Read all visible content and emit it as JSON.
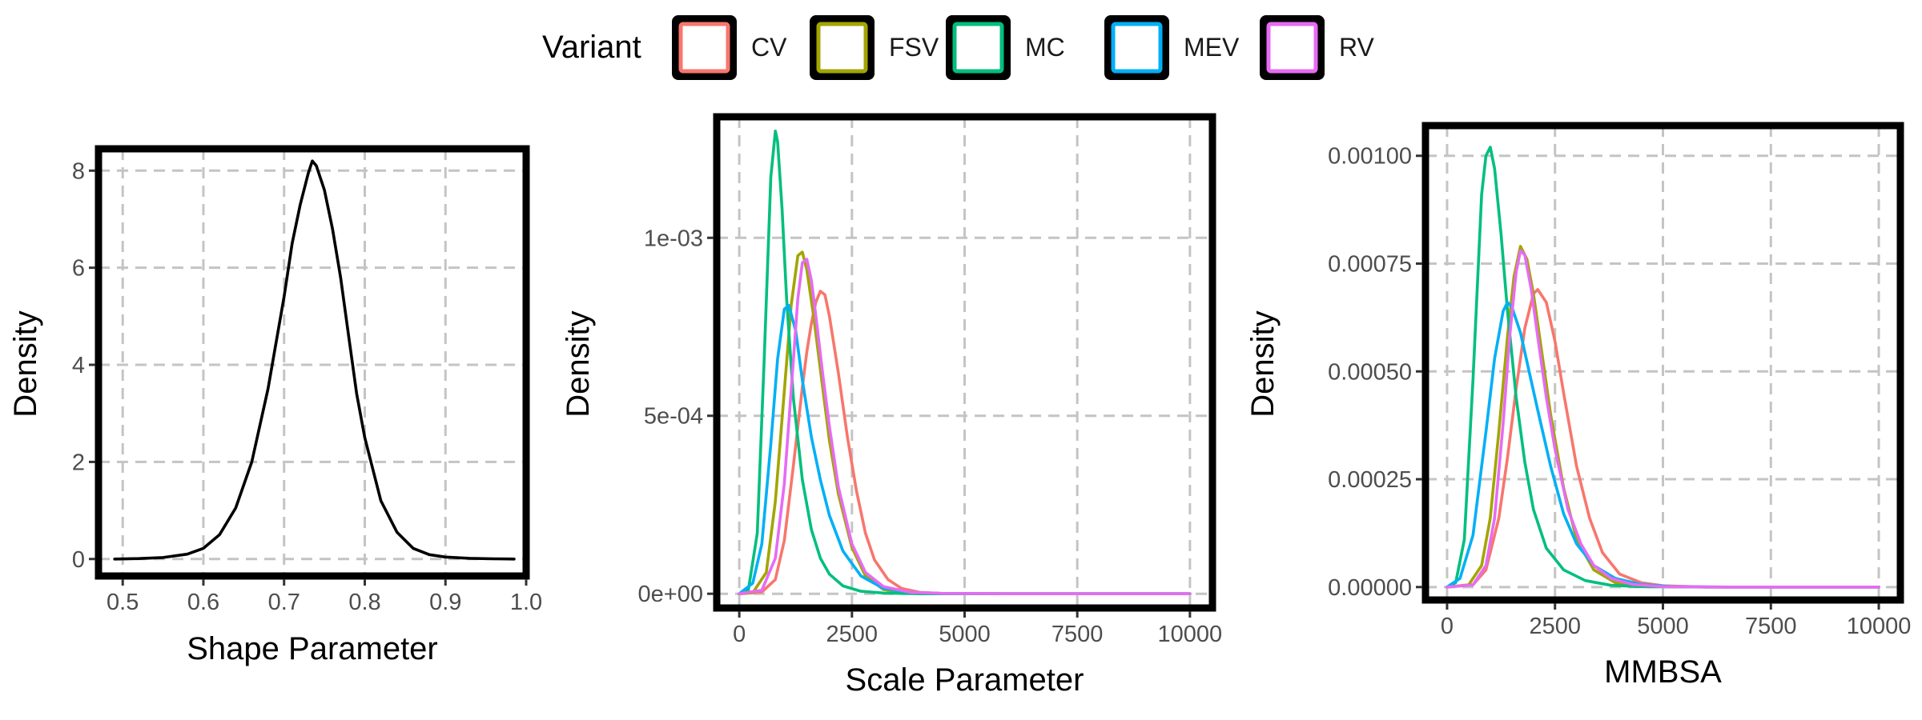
{
  "legend": {
    "title": "Variant",
    "items": [
      {
        "label": "CV",
        "color": "#F8766D"
      },
      {
        "label": "FSV",
        "color": "#A3A500"
      },
      {
        "label": "MC",
        "color": "#00BF7D"
      },
      {
        "label": "MEV",
        "color": "#00B0F6"
      },
      {
        "label": "RV",
        "color": "#E76BF3"
      }
    ]
  },
  "chart_data": [
    {
      "type": "line",
      "xlabel": "Shape Parameter",
      "ylabel": "Density",
      "xlim": [
        0.47,
        1.0
      ],
      "ylim": [
        -0.35,
        8.45
      ],
      "xticks": [
        0.5,
        0.6,
        0.7,
        0.8,
        0.9,
        1.0
      ],
      "xtick_labels": [
        "0.5",
        "0.6",
        "0.7",
        "0.8",
        "0.9",
        "1.0"
      ],
      "yticks": [
        0,
        2,
        4,
        6,
        8
      ],
      "ytick_labels": [
        "0",
        "2",
        "4",
        "6",
        "8"
      ],
      "grid": true,
      "series": [
        {
          "color": "#000000",
          "x": [
            0.49,
            0.52,
            0.55,
            0.58,
            0.6,
            0.62,
            0.64,
            0.66,
            0.68,
            0.7,
            0.71,
            0.72,
            0.73,
            0.735,
            0.74,
            0.75,
            0.76,
            0.77,
            0.78,
            0.79,
            0.8,
            0.82,
            0.84,
            0.86,
            0.88,
            0.9,
            0.93,
            0.96,
            0.985
          ],
          "y": [
            0.0,
            0.01,
            0.03,
            0.1,
            0.22,
            0.5,
            1.05,
            2.0,
            3.5,
            5.4,
            6.5,
            7.3,
            7.95,
            8.2,
            8.1,
            7.6,
            6.8,
            5.8,
            4.6,
            3.4,
            2.5,
            1.2,
            0.55,
            0.22,
            0.09,
            0.04,
            0.015,
            0.005,
            0.0
          ]
        }
      ]
    },
    {
      "type": "line",
      "xlabel": "Scale Parameter",
      "ylabel": "Density",
      "xlim": [
        -500,
        10500
      ],
      "ylim": [
        -4e-05,
        0.00134
      ],
      "xticks": [
        0,
        2500,
        5000,
        7500,
        10000
      ],
      "xtick_labels": [
        "0",
        "2500",
        "5000",
        "7500",
        "10000"
      ],
      "yticks": [
        0,
        0.0005,
        0.001
      ],
      "ytick_labels": [
        "0e+00",
        "5e-04",
        "1e-03"
      ],
      "grid": true,
      "series": [
        {
          "name": "CV",
          "color": "#F8766D",
          "x": [
            0,
            500,
            800,
            1000,
            1200,
            1400,
            1500,
            1600,
            1700,
            1800,
            1900,
            2000,
            2200,
            2400,
            2600,
            2800,
            3000,
            3300,
            3600,
            4000,
            4500,
            5000,
            6000,
            8000,
            10000
          ],
          "y": [
            0,
            5e-06,
            4e-05,
            0.00015,
            0.00036,
            0.00058,
            0.00068,
            0.00076,
            0.00082,
            0.00085,
            0.00084,
            0.00078,
            0.00062,
            0.00044,
            0.00029,
            0.00017,
            9.5e-05,
            4e-05,
            1.5e-05,
            4e-06,
            1e-06,
            0,
            0,
            0,
            0
          ]
        },
        {
          "name": "FSV",
          "color": "#A3A500",
          "x": [
            0,
            300,
            600,
            800,
            1000,
            1150,
            1300,
            1400,
            1500,
            1650,
            1800,
            2000,
            2200,
            2500,
            2800,
            3200,
            3700,
            4500,
            6000,
            8000,
            10000
          ],
          "y": [
            0,
            3e-06,
            6e-05,
            0.00026,
            0.00057,
            0.00081,
            0.00095,
            0.00096,
            0.00091,
            0.00078,
            0.00063,
            0.00043,
            0.00028,
            0.00013,
            5e-05,
            1.2e-05,
            2e-06,
            0,
            0,
            0,
            0
          ]
        },
        {
          "name": "MC",
          "color": "#00BF7D",
          "x": [
            0,
            200,
            400,
            550,
            700,
            800,
            850,
            950,
            1050,
            1200,
            1400,
            1600,
            1800,
            2000,
            2300,
            2700,
            3200,
            4000,
            5000,
            7000,
            10000
          ],
          "y": [
            0,
            1e-05,
            0.00017,
            0.00065,
            0.00117,
            0.0013,
            0.00127,
            0.00108,
            0.00083,
            0.00055,
            0.00032,
            0.00018,
            0.0001,
            5.5e-05,
            2.2e-05,
            7e-06,
            2e-06,
            0,
            0,
            0,
            0
          ]
        },
        {
          "name": "MEV",
          "color": "#00B0F6",
          "x": [
            0,
            300,
            500,
            700,
            850,
            1000,
            1100,
            1250,
            1400,
            1600,
            1800,
            2000,
            2300,
            2700,
            3200,
            3800,
            4500,
            6000,
            8000,
            10000
          ],
          "y": [
            0,
            3e-05,
            0.00014,
            0.00042,
            0.00066,
            0.0008,
            0.00081,
            0.00074,
            0.0006,
            0.00044,
            0.00032,
            0.00022,
            0.00012,
            5e-05,
            1.5e-05,
            4e-06,
            1e-06,
            0,
            0,
            0
          ]
        },
        {
          "name": "RV",
          "color": "#E76BF3",
          "x": [
            0,
            500,
            800,
            1000,
            1150,
            1300,
            1400,
            1500,
            1600,
            1700,
            1850,
            2000,
            2200,
            2500,
            2800,
            3200,
            3800,
            4500,
            6000,
            8000,
            10000
          ],
          "y": [
            0,
            1e-05,
            0.0001,
            0.00031,
            0.00057,
            0.00083,
            0.00093,
            0.00094,
            0.00088,
            0.00078,
            0.00062,
            0.00047,
            0.0003,
            0.00014,
            6e-05,
            2e-05,
            4e-06,
            1e-06,
            0,
            0,
            0
          ]
        }
      ]
    },
    {
      "type": "line",
      "xlabel": "MMBSA",
      "ylabel": "Density",
      "xlim": [
        -500,
        10500
      ],
      "ylim": [
        -3e-05,
        0.00107
      ],
      "xticks": [
        0,
        2500,
        5000,
        7500,
        10000
      ],
      "xtick_labels": [
        "0",
        "2500",
        "5000",
        "7500",
        "10000"
      ],
      "yticks": [
        0,
        0.00025,
        0.0005,
        0.00075,
        0.001
      ],
      "ytick_labels": [
        "0.00000",
        "0.00025",
        "0.00050",
        "0.00075",
        "0.00100"
      ],
      "grid": true,
      "series": [
        {
          "name": "CV",
          "color": "#F8766D",
          "x": [
            0,
            600,
            900,
            1200,
            1400,
            1600,
            1800,
            2000,
            2100,
            2300,
            2500,
            2700,
            3000,
            3300,
            3600,
            4000,
            4500,
            5000,
            6000,
            8000,
            10000
          ],
          "y": [
            0,
            5e-06,
            4e-05,
            0.00016,
            0.0003,
            0.00046,
            0.0006,
            0.00068,
            0.00069,
            0.00066,
            0.00057,
            0.00045,
            0.00028,
            0.00016,
            8e-05,
            3e-05,
            1e-05,
            3e-06,
            0,
            0,
            0
          ]
        },
        {
          "name": "FSV",
          "color": "#A3A500",
          "x": [
            0,
            500,
            800,
            1000,
            1200,
            1400,
            1550,
            1700,
            1850,
            2000,
            2200,
            2400,
            2700,
            3000,
            3400,
            3900,
            4500,
            6000,
            8000,
            10000
          ],
          "y": [
            0,
            5e-06,
            5e-05,
            0.00016,
            0.00036,
            0.00058,
            0.00072,
            0.00079,
            0.00076,
            0.00068,
            0.00054,
            0.0004,
            0.00023,
            0.00011,
            4e-05,
            1e-05,
            2e-06,
            0,
            0,
            0
          ]
        },
        {
          "name": "MC",
          "color": "#00BF7D",
          "x": [
            0,
            200,
            400,
            600,
            800,
            900,
            1000,
            1100,
            1250,
            1400,
            1600,
            1800,
            2000,
            2300,
            2700,
            3200,
            3800,
            4500,
            6000,
            8000,
            10000
          ],
          "y": [
            0,
            1e-05,
            0.00011,
            0.00048,
            0.00091,
            0.001,
            0.00102,
            0.00097,
            0.00082,
            0.00064,
            0.00044,
            0.00029,
            0.00018,
            9e-05,
            4e-05,
            1.5e-05,
            4e-06,
            1e-06,
            0,
            0,
            0
          ]
        },
        {
          "name": "MEV",
          "color": "#00B0F6",
          "x": [
            0,
            300,
            600,
            900,
            1100,
            1300,
            1400,
            1500,
            1700,
            1900,
            2100,
            2400,
            2700,
            3000,
            3400,
            3900,
            4500,
            5200,
            6500,
            8000,
            10000
          ],
          "y": [
            0,
            2e-05,
            0.00012,
            0.00036,
            0.00053,
            0.00064,
            0.00066,
            0.00065,
            0.00059,
            0.0005,
            0.00041,
            0.00028,
            0.00017,
            0.0001,
            5e-05,
            2e-05,
            6e-06,
            1e-06,
            0,
            0,
            0
          ]
        },
        {
          "name": "RV",
          "color": "#E76BF3",
          "x": [
            0,
            600,
            900,
            1100,
            1300,
            1450,
            1600,
            1700,
            1800,
            1950,
            2100,
            2300,
            2500,
            2800,
            3100,
            3400,
            3800,
            4300,
            5000,
            6500,
            8000,
            10000
          ],
          "y": [
            0,
            5e-06,
            5e-05,
            0.00016,
            0.00038,
            0.00058,
            0.00073,
            0.00078,
            0.00077,
            0.00069,
            0.00058,
            0.00044,
            0.00032,
            0.00018,
            0.0001,
            5e-05,
            2e-05,
            6e-06,
            1e-06,
            0,
            0,
            0
          ]
        }
      ]
    }
  ]
}
